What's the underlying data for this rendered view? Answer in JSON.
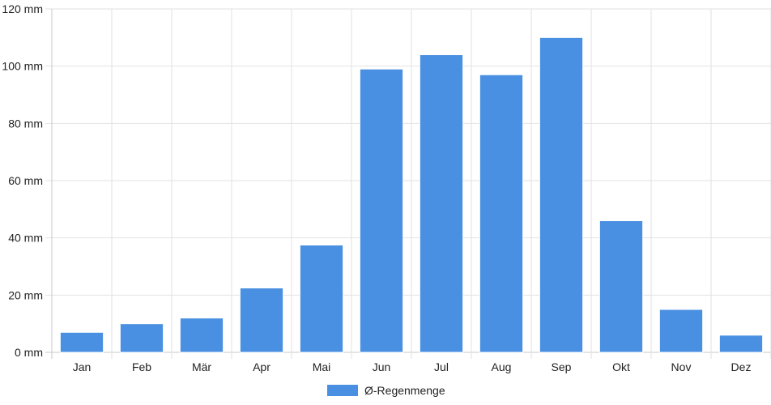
{
  "chart_data": {
    "type": "bar",
    "categories": [
      "Jan",
      "Feb",
      "Mär",
      "Apr",
      "Mai",
      "Jun",
      "Jul",
      "Aug",
      "Sep",
      "Okt",
      "Nov",
      "Dez"
    ],
    "series": [
      {
        "name": "Ø-Regenmenge",
        "values": [
          7,
          10,
          12,
          22.5,
          37.5,
          99,
          104,
          97,
          110,
          46,
          15,
          6
        ],
        "color": "#4a90e2"
      }
    ],
    "title": "",
    "xlabel": "",
    "ylabel": "",
    "ylim": [
      0,
      120
    ],
    "yticks": [
      0,
      20,
      40,
      60,
      80,
      100,
      120
    ],
    "ytick_labels": [
      "0 mm",
      "20 mm",
      "40 mm",
      "60 mm",
      "80 mm",
      "100 mm",
      "120 mm"
    ],
    "grid": true,
    "legend_position": "bottom-center"
  }
}
